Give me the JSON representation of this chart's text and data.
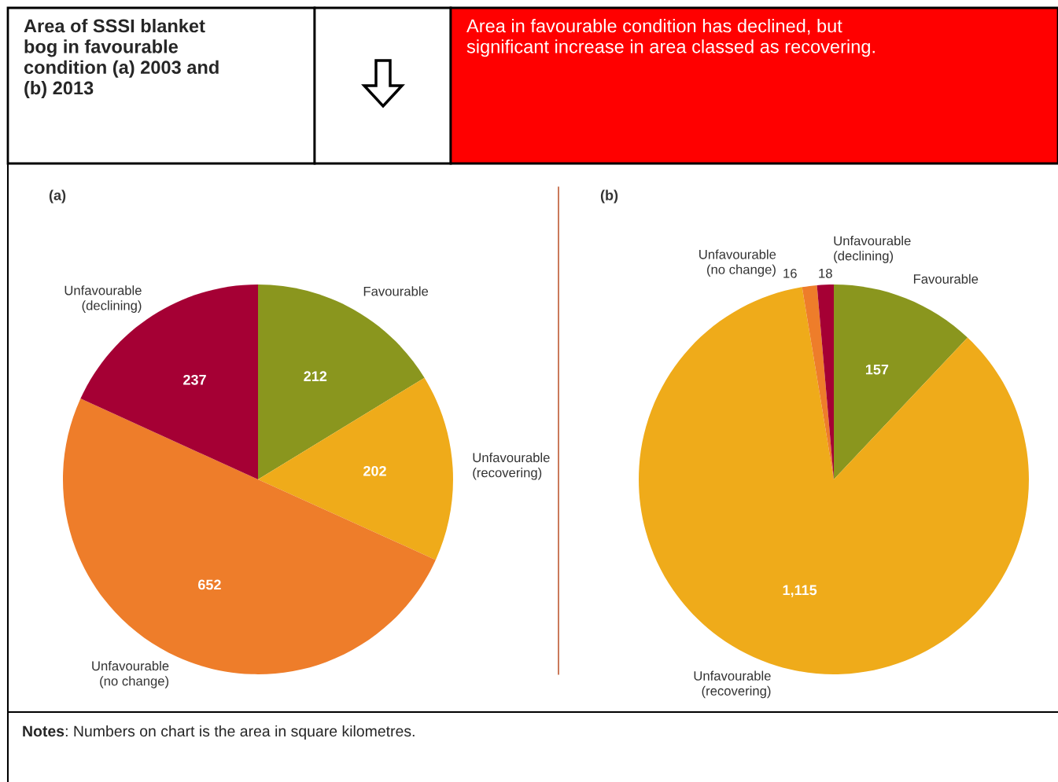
{
  "chart_data": [
    {
      "type": "pie",
      "title": "(a)",
      "categories": [
        "Favourable",
        "Unfavourable\n(recovering)",
        "Unfavourable\n(no change)",
        "Unfavourable\n(declining)"
      ],
      "values": [
        212,
        202,
        652,
        237
      ],
      "colors": [
        "#8a961e",
        "#efab1a",
        "#ee7d2a",
        "#a50034"
      ],
      "data_labels": true,
      "annotations": [
        "Area of SSSI blanket\nbog in favourable\ncondition (a) 2003 and\n(b) 2013",
        "Area in favourable condition has declined, but\nsignificant increase in area classed as recovering.",
        "Notes: Numbers on chart is the area in square kilometres."
      ]
    },
    {
      "type": "pie",
      "title": "(b)",
      "categories": [
        "Favourable",
        "Unfavourable\n(recovering)",
        "Unfavourable\n(no change)",
        "Unfavourable\n(declining)"
      ],
      "values": [
        157,
        1115,
        16,
        18
      ],
      "colors": [
        "#8a961e",
        "#efab1a",
        "#ee7d2a",
        "#a50034"
      ],
      "value_labels": [
        "157",
        "1,115",
        "16",
        "18"
      ]
    }
  ]
}
